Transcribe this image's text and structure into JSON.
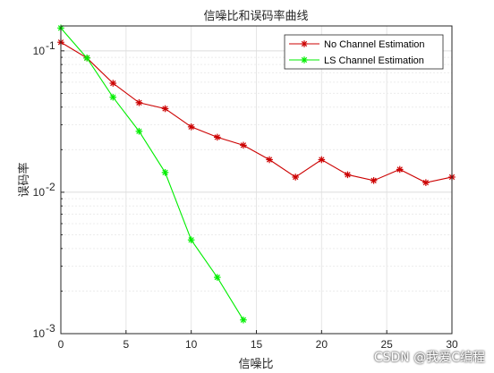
{
  "chart_data": {
    "type": "line",
    "title": "信噪比和误码率曲线",
    "xlabel": "信噪比",
    "ylabel": "误码率",
    "xlim": [
      0,
      30
    ],
    "ylim": [
      0.001,
      0.15
    ],
    "yscale": "log",
    "x_ticks": [
      "0",
      "5",
      "10",
      "15",
      "20",
      "25",
      "30"
    ],
    "y_ticks": [
      {
        "value": 0.001,
        "base": "10",
        "exp": "-3"
      },
      {
        "value": 0.01,
        "base": "10",
        "exp": "-2"
      },
      {
        "value": 0.1,
        "base": "10",
        "exp": "-1"
      }
    ],
    "grid": true,
    "legend_position": "top-right",
    "series": [
      {
        "name": "No Channel Estimation",
        "color": "#cc0000",
        "marker": "asterisk",
        "x": [
          0,
          2,
          4,
          6,
          8,
          10,
          12,
          14,
          16,
          18,
          20,
          22,
          24,
          26,
          28,
          30
        ],
        "y": [
          0.115,
          0.089,
          0.059,
          0.043,
          0.039,
          0.029,
          0.0245,
          0.0215,
          0.017,
          0.0128,
          0.017,
          0.0133,
          0.0121,
          0.0145,
          0.0117,
          0.0128
        ]
      },
      {
        "name": "LS Channel Estimation",
        "color": "#00ee00",
        "marker": "asterisk",
        "x": [
          0,
          2,
          4,
          6,
          8,
          10,
          12,
          14
        ],
        "y": [
          0.145,
          0.089,
          0.047,
          0.027,
          0.0138,
          0.0046,
          0.0025,
          0.00125
        ]
      }
    ]
  },
  "watermark": "CSDN @我爱C编程"
}
